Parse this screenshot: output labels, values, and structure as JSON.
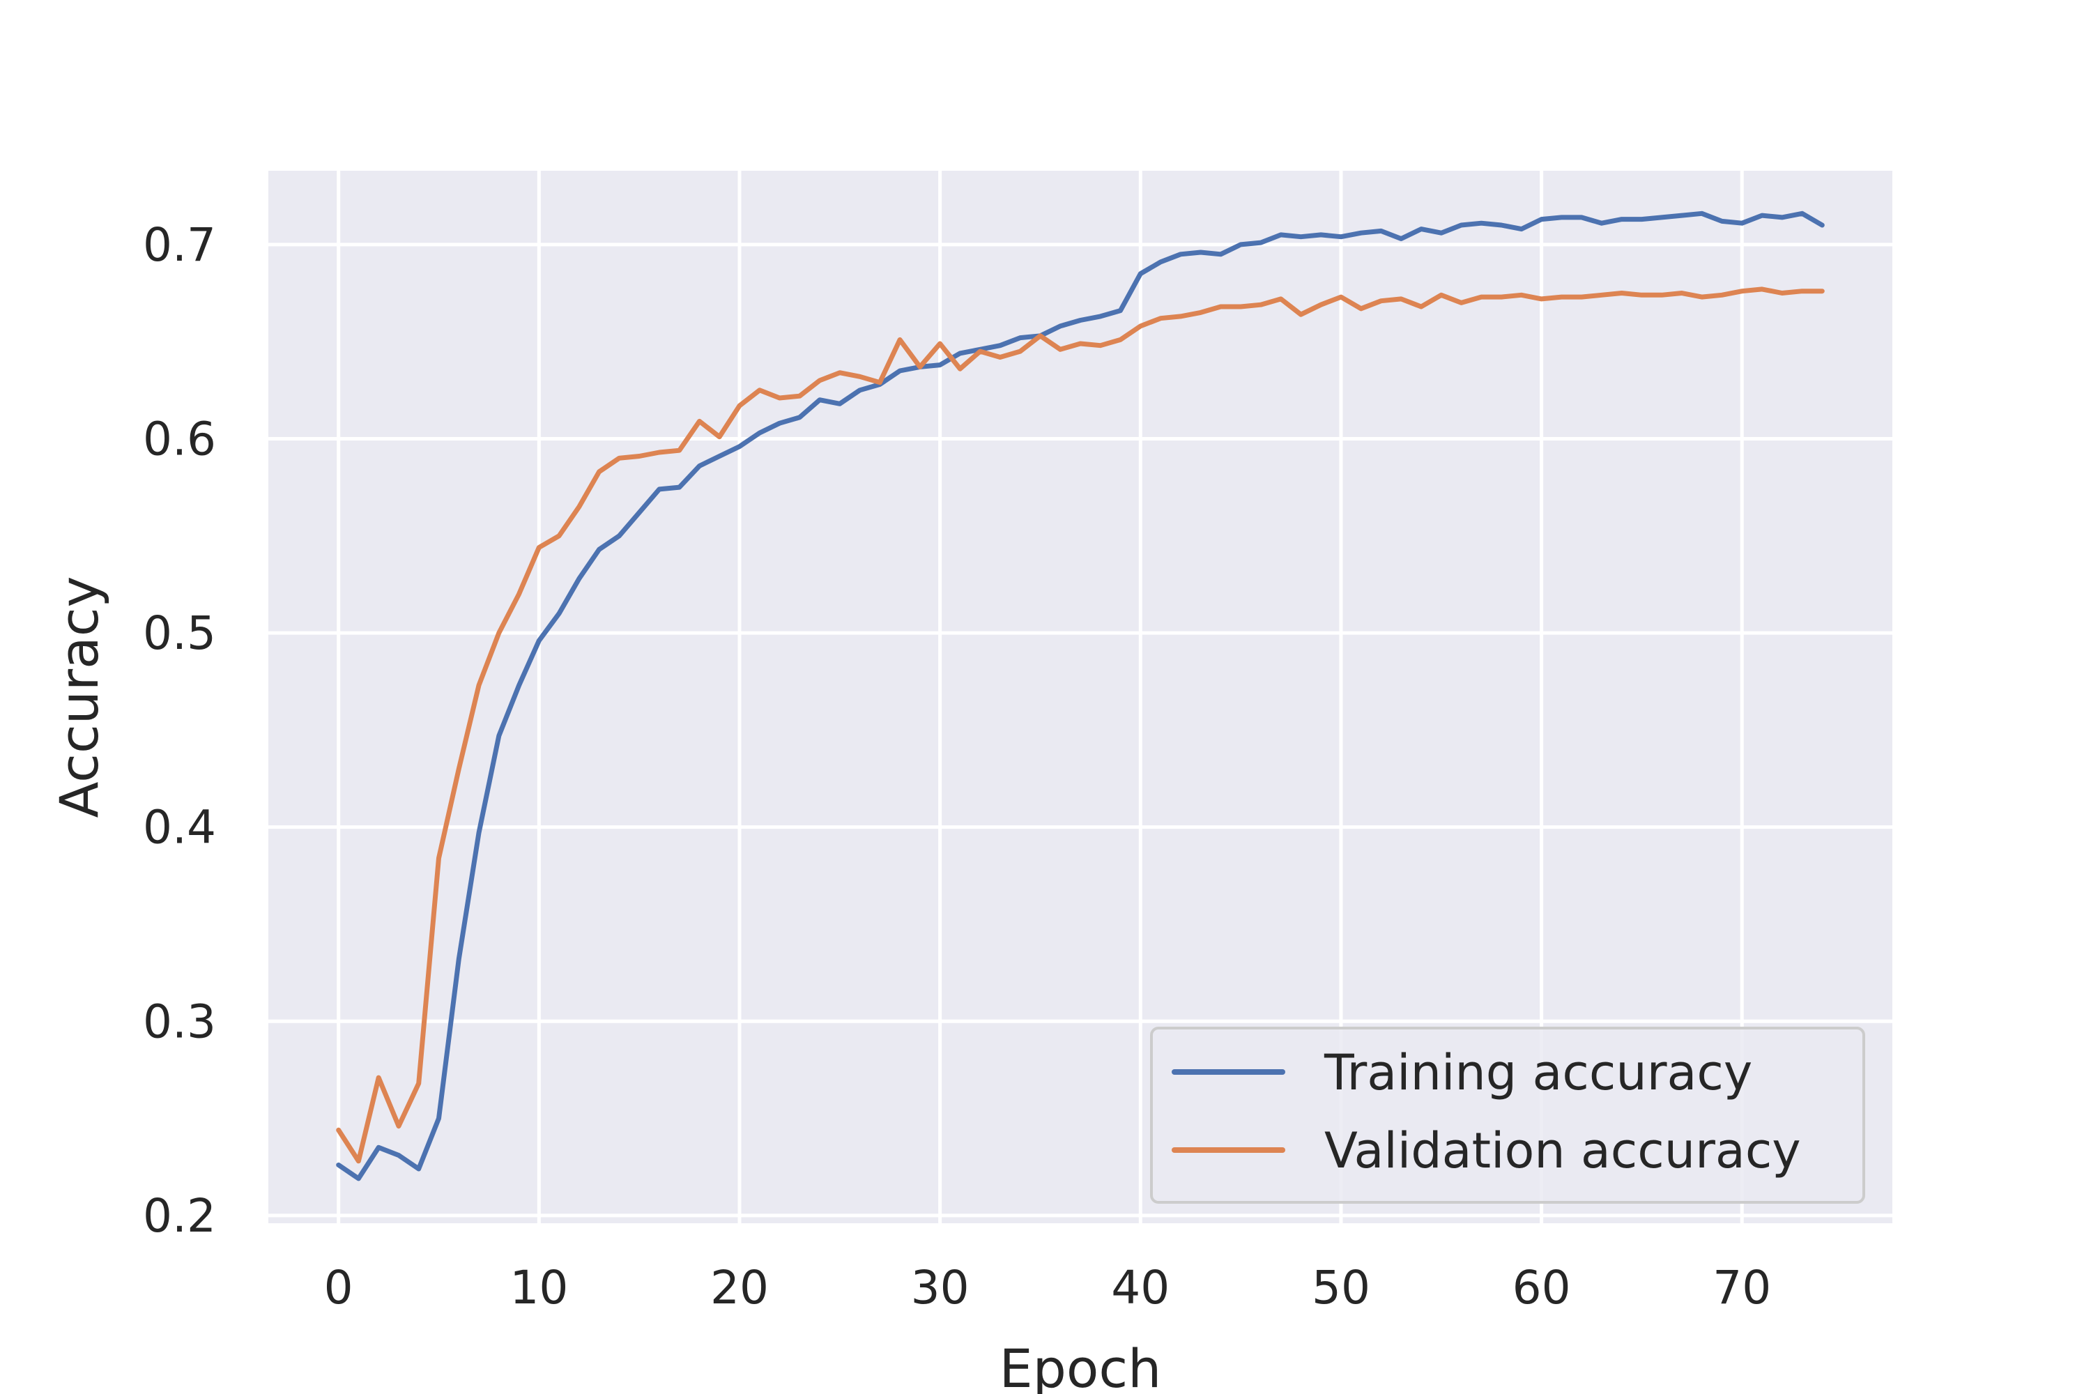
{
  "chart_data": {
    "type": "line",
    "title": "",
    "xlabel": "Epoch",
    "ylabel": "Accuracy",
    "xlim": [
      -3.5,
      77.5
    ],
    "ylim": [
      0.196,
      0.738
    ],
    "xticks": [
      0,
      10,
      20,
      30,
      40,
      50,
      60,
      70
    ],
    "xtick_labels": [
      "0",
      "10",
      "20",
      "30",
      "40",
      "50",
      "60",
      "70"
    ],
    "yticks": [
      0.2,
      0.3,
      0.4,
      0.5,
      0.6,
      0.7
    ],
    "ytick_labels": [
      "0.2",
      "0.3",
      "0.4",
      "0.5",
      "0.6",
      "0.7"
    ],
    "grid": true,
    "legend_position": "lower-right",
    "x": [
      0,
      1,
      2,
      3,
      4,
      5,
      6,
      7,
      8,
      9,
      10,
      11,
      12,
      13,
      14,
      15,
      16,
      17,
      18,
      19,
      20,
      21,
      22,
      23,
      24,
      25,
      26,
      27,
      28,
      29,
      30,
      31,
      32,
      33,
      34,
      35,
      36,
      37,
      38,
      39,
      40,
      41,
      42,
      43,
      44,
      45,
      46,
      47,
      48,
      49,
      50,
      51,
      52,
      53,
      54,
      55,
      56,
      57,
      58,
      59,
      60,
      61,
      62,
      63,
      64,
      65,
      66,
      67,
      68,
      69,
      70,
      71,
      72,
      73,
      74
    ],
    "series": [
      {
        "name": "Training accuracy",
        "color": "#4c72b0",
        "values": [
          0.226,
          0.219,
          0.235,
          0.231,
          0.224,
          0.25,
          0.332,
          0.397,
          0.447,
          0.473,
          0.496,
          0.51,
          0.528,
          0.543,
          0.55,
          0.562,
          0.574,
          0.575,
          0.586,
          0.591,
          0.596,
          0.603,
          0.608,
          0.611,
          0.62,
          0.618,
          0.625,
          0.628,
          0.635,
          0.637,
          0.638,
          0.644,
          0.646,
          0.648,
          0.652,
          0.653,
          0.658,
          0.661,
          0.663,
          0.666,
          0.685,
          0.691,
          0.695,
          0.696,
          0.695,
          0.7,
          0.701,
          0.705,
          0.704,
          0.705,
          0.704,
          0.706,
          0.707,
          0.703,
          0.708,
          0.706,
          0.71,
          0.711,
          0.71,
          0.708,
          0.713,
          0.714,
          0.714,
          0.711,
          0.713,
          0.713,
          0.714,
          0.715,
          0.716,
          0.712,
          0.711,
          0.715,
          0.714,
          0.716,
          0.71
        ]
      },
      {
        "name": "Validation accuracy",
        "color": "#dd8452",
        "values": [
          0.244,
          0.228,
          0.271,
          0.246,
          0.268,
          0.384,
          0.43,
          0.473,
          0.5,
          0.52,
          0.544,
          0.55,
          0.565,
          0.583,
          0.59,
          0.591,
          0.593,
          0.594,
          0.609,
          0.601,
          0.617,
          0.625,
          0.621,
          0.622,
          0.63,
          0.634,
          0.632,
          0.629,
          0.651,
          0.637,
          0.649,
          0.636,
          0.645,
          0.642,
          0.645,
          0.653,
          0.646,
          0.649,
          0.648,
          0.651,
          0.658,
          0.662,
          0.663,
          0.665,
          0.668,
          0.668,
          0.669,
          0.672,
          0.664,
          0.669,
          0.673,
          0.667,
          0.671,
          0.672,
          0.668,
          0.674,
          0.67,
          0.673,
          0.673,
          0.674,
          0.672,
          0.673,
          0.673,
          0.674,
          0.675,
          0.674,
          0.674,
          0.675,
          0.673,
          0.674,
          0.676,
          0.677,
          0.675,
          0.676,
          0.676
        ]
      }
    ]
  }
}
